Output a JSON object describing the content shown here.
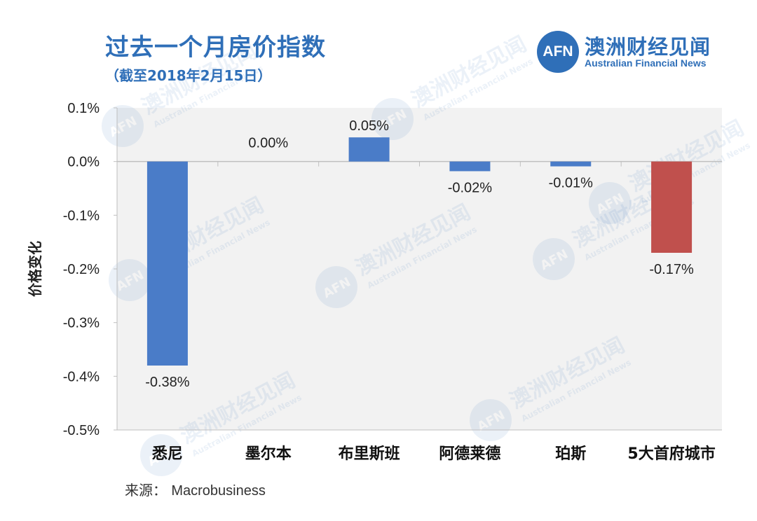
{
  "header": {
    "title": "过去一个月房价指数",
    "subtitle": "（截至2018年2月15日）"
  },
  "logo": {
    "mark": "AFN",
    "name_cn": "澳洲财经见闻",
    "name_en": "Australian Financial News"
  },
  "watermark": {
    "mark": "AFN",
    "text_cn": "澳洲财经见闻",
    "text_en": "Australian Financial News"
  },
  "source": {
    "label": "来源：",
    "value": "Macrobusiness"
  },
  "colors": {
    "accent": "#2f6fb8",
    "bar_default": "#4a7cc8",
    "bar_highlight": "#c0504d",
    "plot_bg": "#f2f2f2"
  },
  "chart_data": {
    "type": "bar",
    "title": "过去一个月房价指数",
    "subtitle": "（截至2018年2月15日）",
    "xlabel": "",
    "ylabel": "价格变化",
    "categories": [
      "悉尼",
      "墨尔本",
      "布里斯班",
      "阿德莱德",
      "珀斯",
      "5大首府城市"
    ],
    "values": [
      -0.38,
      0.0,
      0.045,
      -0.018,
      -0.009,
      -0.17
    ],
    "value_labels": [
      "-0.38%",
      "0.00%",
      "0.05%",
      "-0.02%",
      "-0.01%",
      "-0.17%"
    ],
    "highlight_index": 5,
    "ylim": [
      -0.5,
      0.1
    ],
    "yticks": [
      0.1,
      0.0,
      -0.1,
      -0.2,
      -0.3,
      -0.4,
      -0.5
    ],
    "ytick_labels": [
      "0.1%",
      "0.0%",
      "-0.1%",
      "-0.2%",
      "-0.3%",
      "-0.4%",
      "-0.5%"
    ],
    "grid": false,
    "legend": "none"
  }
}
